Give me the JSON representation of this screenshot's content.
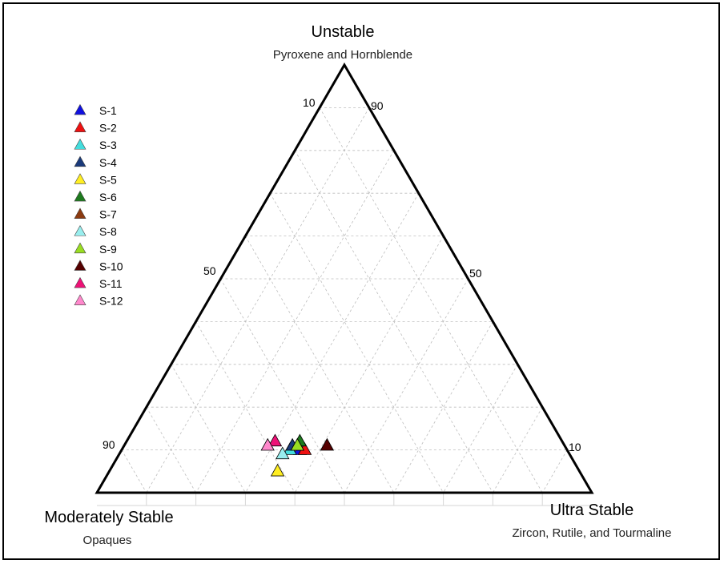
{
  "chart_data": {
    "type": "scatter",
    "subtype": "ternary",
    "grid": true,
    "grid_step": 10,
    "legend_position": "top-left",
    "apices": {
      "top": {
        "title": "Unstable",
        "subtitle": "Pyroxene and Hornblende"
      },
      "left": {
        "title": "Moderately Stable",
        "subtitle": "Opaques"
      },
      "right": {
        "title": "Ultra Stable",
        "subtitle": "Zircon, Rutile, and Tourmaline"
      }
    },
    "ticks": {
      "left_edge": [
        "10",
        "50",
        "90"
      ],
      "right_edge": [
        "90",
        "50",
        "10"
      ]
    },
    "axis_value_fields": [
      "unstable",
      "moderately_stable",
      "ultra_stable"
    ],
    "series": [
      {
        "name": "S-1",
        "color": "#1010e0",
        "unstable": 10,
        "moderately_stable": 54,
        "ultra_stable": 36
      },
      {
        "name": "S-2",
        "color": "#ee1111",
        "unstable": 10,
        "moderately_stable": 53,
        "ultra_stable": 37
      },
      {
        "name": "S-3",
        "color": "#44dddd",
        "unstable": 10,
        "moderately_stable": 56,
        "ultra_stable": 34
      },
      {
        "name": "S-4",
        "color": "#1a3a7a",
        "unstable": 11,
        "moderately_stable": 55,
        "ultra_stable": 34
      },
      {
        "name": "S-5",
        "color": "#ffee22",
        "unstable": 5,
        "moderately_stable": 61,
        "ultra_stable": 34
      },
      {
        "name": "S-6",
        "color": "#1e7a1e",
        "unstable": 12,
        "moderately_stable": 53,
        "ultra_stable": 35
      },
      {
        "name": "S-7",
        "color": "#8b3a10",
        "unstable": 11,
        "moderately_stable": 54,
        "ultra_stable": 35
      },
      {
        "name": "S-8",
        "color": "#99eeee",
        "unstable": 9,
        "moderately_stable": 58,
        "ultra_stable": 33
      },
      {
        "name": "S-9",
        "color": "#99dd22",
        "unstable": 11,
        "moderately_stable": 54,
        "ultra_stable": 35
      },
      {
        "name": "S-10",
        "color": "#550000",
        "unstable": 11,
        "moderately_stable": 48,
        "ultra_stable": 41
      },
      {
        "name": "S-11",
        "color": "#ee1177",
        "unstable": 12,
        "moderately_stable": 58,
        "ultra_stable": 30
      },
      {
        "name": "S-12",
        "color": "#ff88cc",
        "unstable": 11,
        "moderately_stable": 60,
        "ultra_stable": 29
      }
    ]
  }
}
